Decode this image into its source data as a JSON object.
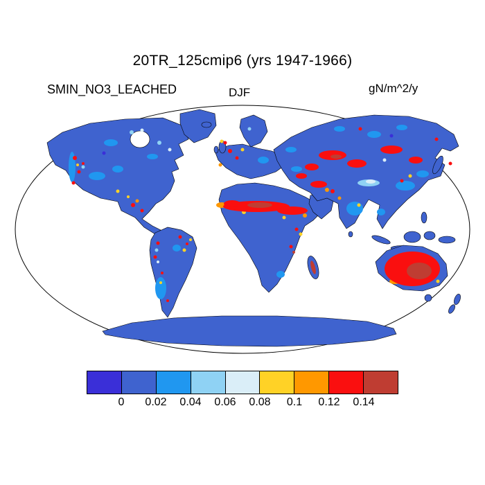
{
  "header": {
    "title": "20TR_125cmip6 (yrs 1947-1966)",
    "variable": "SMIN_NO3_LEACHED",
    "season": "DJF",
    "units": "gN/m^2/y"
  },
  "palette": {
    "violet_blue": "#3a2fd8",
    "land_blue": "#3f63cf",
    "mid_blue": "#2097f0",
    "light_blue": "#8fd2f4",
    "pale_blue": "#daeef8",
    "yellow": "#ffd226",
    "orange": "#ff9800",
    "red": "#fa0f0f",
    "dark_red": "#bf3d32",
    "outline": "#000000",
    "ocean": "#ffffff"
  },
  "chart_data": {
    "type": "heatmap",
    "title": "20TR_125cmip6 (yrs 1947-1966)",
    "variable": "SMIN_NO3_LEACHED",
    "season": "DJF",
    "units": "gN/m^2/y",
    "projection": "robinson world map, white ocean, black boundary outline",
    "colorbar": {
      "orientation": "horizontal",
      "levels": [
        0,
        0.02,
        0.04,
        0.06,
        0.08,
        0.1,
        0.12,
        0.14
      ],
      "tick_labels": [
        "0",
        "0.02",
        "0.04",
        "0.06",
        "0.08",
        "0.1",
        "0.12",
        "0.14"
      ],
      "colors": [
        "#3a2fd8",
        "#3f63cf",
        "#2097f0",
        "#8fd2f4",
        "#daeef8",
        "#ffd226",
        "#ff9800",
        "#fa0f0f",
        "#bf3d32"
      ]
    },
    "summary": {
      "dominant_land_value": "0-0.02 gN/m^2/y (royal blue) over most land, Greenland and Antarctica",
      "ocean": "no data (white)",
      "high_value_regions": [
        {
          "region": "Sahel / northern-central Africa band",
          "value": "0.12 to >0.14"
        },
        {
          "region": "Australian interior",
          "value": "0.12 with large core >0.14"
        },
        {
          "region": "Central Asia: Kazakhstan, Mongolia, Middle East",
          "value": "patches 0.1->0.14"
        },
        {
          "region": "Western North America and Mexico",
          "value": "scattered specks 0.02-0.14"
        },
        {
          "region": "Andes and southern South America",
          "value": "scattered specks 0.02-0.14"
        },
        {
          "region": "Europe: UK, France, central Europe",
          "value": "scattered specks 0.08-0.14"
        },
        {
          "region": "India and eastern China",
          "value": "patches 0.02-0.1"
        },
        {
          "region": "Tibetan Plateau",
          "value": "0.06-0.08"
        },
        {
          "region": "East Africa",
          "value": "scattered specks 0.08->0.14"
        }
      ]
    }
  }
}
